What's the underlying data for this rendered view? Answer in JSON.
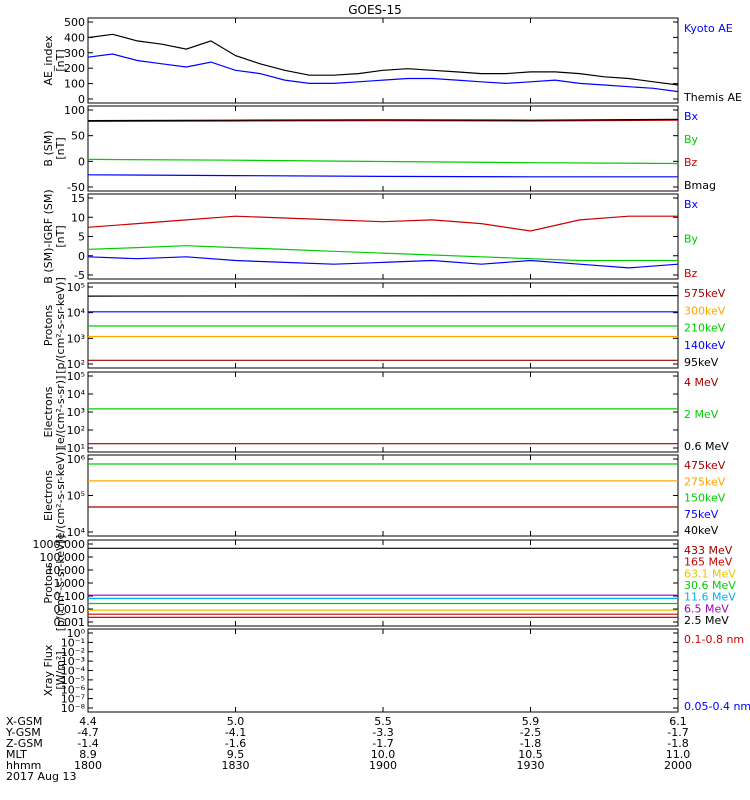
{
  "title": "GOES-15",
  "colors": {
    "black": "#000000",
    "blue": "#0000ff",
    "red": "#cc0000",
    "darkred": "#a00000",
    "green": "#00cc00",
    "orange": "#ffa500",
    "yellow": "#e6c800",
    "cyan": "#00b0ff",
    "purple": "#a000c0"
  },
  "chart_data": [
    {
      "type": "line",
      "ylabel": [
        "AE_index",
        "[nT]"
      ],
      "yticks": [
        "500",
        "400",
        "300",
        "200",
        "100",
        "0"
      ],
      "ylim": [
        0,
        520
      ],
      "x": [
        1800,
        1805,
        1810,
        1815,
        1820,
        1825,
        1830,
        1835,
        1840,
        1845,
        1850,
        1855,
        1900,
        1905,
        1910,
        1915,
        1920,
        1925,
        1930,
        1935,
        1940,
        1945,
        1950,
        1955,
        2000
      ],
      "series": [
        {
          "name": "Kyoto AE",
          "color": "blue",
          "values": [
            280,
            300,
            260,
            240,
            220,
            250,
            200,
            180,
            140,
            120,
            120,
            130,
            140,
            150,
            150,
            140,
            130,
            120,
            130,
            140,
            120,
            110,
            100,
            90,
            70
          ]
        },
        {
          "name": "Themis AE",
          "color": "black",
          "values": [
            400,
            420,
            380,
            360,
            330,
            380,
            290,
            240,
            200,
            170,
            170,
            180,
            200,
            210,
            200,
            190,
            180,
            180,
            190,
            190,
            180,
            160,
            150,
            130,
            110
          ]
        }
      ]
    },
    {
      "type": "line",
      "ylabel": [
        "B (SM)",
        "[nT]"
      ],
      "yticks": [
        "100",
        "50",
        "0",
        "-50"
      ],
      "ylim": [
        -60,
        150
      ],
      "x": [
        1800,
        1830,
        1900,
        1930,
        2000
      ],
      "series": [
        {
          "name": "Bx",
          "color": "blue",
          "values": [
            -20,
            -22,
            -24,
            -25,
            -25
          ]
        },
        {
          "name": "By",
          "color": "green",
          "values": [
            18,
            16,
            13,
            10,
            8
          ]
        },
        {
          "name": "Bz",
          "color": "red",
          "values": [
            112,
            113,
            114,
            113,
            115
          ]
        },
        {
          "name": "Bmag",
          "color": "black",
          "values": [
            114,
            115,
            116,
            115,
            117
          ]
        }
      ]
    },
    {
      "type": "line",
      "ylabel": [
        "B (SM)-IGRF (SM)",
        "[nT]"
      ],
      "yticks": [
        "15",
        "10",
        "5",
        "0",
        "-5"
      ],
      "ylim": [
        -6,
        17
      ],
      "x": [
        1800,
        1810,
        1820,
        1830,
        1840,
        1850,
        1900,
        1910,
        1920,
        1930,
        1940,
        1950,
        2000
      ],
      "series": [
        {
          "name": "Bx",
          "color": "blue",
          "values": [
            0,
            -0.5,
            0,
            -1,
            -1.5,
            -2,
            -1.5,
            -1,
            -2,
            -1,
            -2,
            -3,
            -2
          ]
        },
        {
          "name": "By",
          "color": "green",
          "values": [
            2,
            2.5,
            3,
            2.5,
            2,
            1.5,
            1,
            0.5,
            0,
            -0.5,
            -1,
            -1,
            -1
          ]
        },
        {
          "name": "Bz",
          "color": "red",
          "values": [
            8,
            9,
            10,
            11,
            10.5,
            10,
            9.5,
            10,
            9,
            7,
            10,
            11,
            11
          ]
        }
      ]
    },
    {
      "type": "line",
      "ylog": true,
      "ylabel": [
        "Protons",
        "[p/(cm²-s-sr-keV)]"
      ],
      "yticks": [
        "10⁵",
        "10⁴",
        "10³",
        "10²"
      ],
      "ylim": [
        50,
        800000
      ],
      "x": [
        1800,
        2000
      ],
      "series": [
        {
          "name": "575keV",
          "color": "darkred",
          "values": [
            120,
            120
          ]
        },
        {
          "name": "300keV",
          "color": "orange",
          "values": [
            1800,
            1800
          ]
        },
        {
          "name": "210keV",
          "color": "green",
          "values": [
            6000,
            6000
          ]
        },
        {
          "name": "140keV",
          "color": "blue",
          "values": [
            30000,
            30000
          ]
        },
        {
          "name": "95keV",
          "color": "black",
          "values": [
            180000,
            190000
          ]
        }
      ]
    },
    {
      "type": "line",
      "ylog": true,
      "ylabel": [
        "Electrons",
        "[e/(cm²-s-sr)]"
      ],
      "yticks": [
        "10⁵",
        "10⁴",
        "10³",
        "10²",
        "10¹"
      ],
      "ylim": [
        5,
        200000
      ],
      "x": [
        1800,
        2000
      ],
      "series": [
        {
          "name": "4 MeV",
          "color": "darkred",
          "values": [
            15,
            15
          ]
        },
        {
          "name": "2 MeV",
          "color": "green",
          "values": [
            1500,
            1500
          ]
        },
        {
          "name": "0.6 MeV",
          "color": "black",
          "values": [
            null,
            null
          ]
        }
      ]
    },
    {
      "type": "line",
      "ylog": true,
      "ylabel": [
        "Electrons",
        "[e/(cm²-s-sr-keV)]"
      ],
      "yticks": [
        "10⁶",
        "10⁵",
        "10⁴"
      ],
      "ylim": [
        10000,
        1000000
      ],
      "x": [
        1800,
        2000
      ],
      "series": [
        {
          "name": "475keV",
          "color": "darkred",
          "values": [
            52000,
            52000
          ]
        },
        {
          "name": "275keV",
          "color": "orange",
          "values": [
            230000,
            230000
          ]
        },
        {
          "name": "150keV",
          "color": "green",
          "values": [
            600000,
            600000
          ]
        },
        {
          "name": "75keV",
          "color": "blue",
          "values": [
            null,
            null
          ]
        },
        {
          "name": "40keV",
          "color": "black",
          "values": [
            null,
            null
          ]
        }
      ]
    },
    {
      "type": "line",
      "ylog": true,
      "ylabel": [
        "Protons",
        "[p/(cm²-s-sr-keV)]"
      ],
      "yticks": [
        "1000.000",
        "100.000",
        "10.000",
        "1.000",
        "0.100",
        "0.010",
        "0.001"
      ],
      "ylim": [
        0.0007,
        1200
      ],
      "x": [
        1800,
        2000
      ],
      "series": [
        {
          "name": "433 MeV",
          "color": "darkred",
          "values": [
            0.003,
            0.003
          ]
        },
        {
          "name": "165 MeV",
          "color": "red",
          "values": [
            0.005,
            0.005
          ]
        },
        {
          "name": "63.1 MeV",
          "color": "yellow",
          "values": [
            0.01,
            0.01
          ]
        },
        {
          "name": "30.6 MeV",
          "color": "green",
          "values": [
            0.03,
            0.03
          ]
        },
        {
          "name": "11.6 MeV",
          "color": "cyan",
          "values": [
            0.07,
            0.07
          ]
        },
        {
          "name": "6.5 MeV",
          "color": "purple",
          "values": [
            0.12,
            0.12
          ]
        },
        {
          "name": "2.5 MeV",
          "color": "black",
          "values": [
            300,
            300
          ]
        }
      ]
    },
    {
      "type": "line",
      "ylog": true,
      "ylabel": [
        "Xray Flux",
        "[W/m²]"
      ],
      "yticks": [
        "10⁰",
        "10⁻¹",
        "10⁻²",
        "10⁻³",
        "10⁻⁴",
        "10⁻⁵",
        "10⁻⁶",
        "10⁻⁷",
        "10⁻⁸"
      ],
      "ylim": [
        1e-08,
        1
      ],
      "x": [
        1800,
        2000
      ],
      "series": [
        {
          "name": "0.1-0.8 nm",
          "color": "red",
          "values": [
            null,
            null
          ]
        },
        {
          "name": "0.05-0.4 nm",
          "color": "blue",
          "values": [
            null,
            null
          ]
        }
      ]
    }
  ],
  "xaxis": {
    "row_labels": [
      "X-GSM",
      "Y-GSM",
      "Z-GSM",
      "MLT",
      "hhmm"
    ],
    "date": "2017 Aug 13",
    "ticks": [
      {
        "time": 1800,
        "values": [
          "4.4",
          "-4.7",
          "-1.4",
          "8.9",
          "1800"
        ]
      },
      {
        "time": 1830,
        "values": [
          "5.0",
          "-4.1",
          "-1.6",
          "9.5",
          "1830"
        ]
      },
      {
        "time": 1900,
        "values": [
          "5.5",
          "-3.3",
          "-1.7",
          "10.0",
          "1900"
        ]
      },
      {
        "time": 1930,
        "values": [
          "5.9",
          "-2.5",
          "-1.8",
          "10.5",
          "1930"
        ]
      },
      {
        "time": 2000,
        "values": [
          "6.1",
          "-1.7",
          "-1.8",
          "11.0",
          "2000"
        ]
      }
    ]
  }
}
